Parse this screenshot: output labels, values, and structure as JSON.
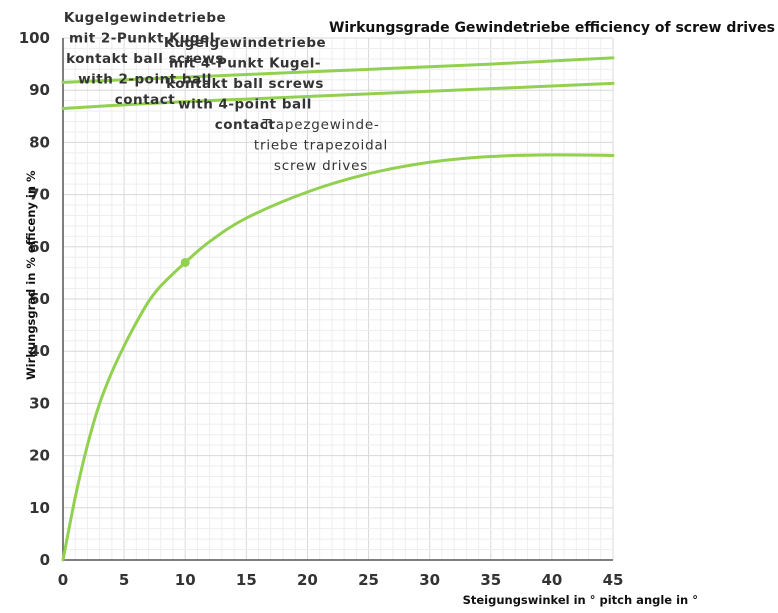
{
  "chart_data": {
    "type": "line",
    "title": "Wirkungsgrade Gewindetriebe efficiency of screw drives",
    "xlabel": "Steigungswinkel in ° pitch angle in °",
    "ylabel": "Wirkungsgrad in % efficeny in %",
    "xlim": [
      0,
      45
    ],
    "ylim": [
      0,
      100
    ],
    "x_ticks": [
      "0",
      "5",
      "10",
      "15",
      "20",
      "25",
      "30",
      "35",
      "40",
      "45"
    ],
    "y_ticks": [
      "0",
      "10",
      "20",
      "30",
      "40",
      "50",
      "60",
      "70",
      "80",
      "90",
      "100"
    ],
    "grid": true,
    "line_color": "#92d050",
    "series": [
      {
        "name": "Kugelgewindetriebe mit 2-Punkt Kugelkontakt ball screws with 2-point ball contact",
        "label_lines": [
          "Kugelgewindetriebe",
          "mit 2-Punkt Kugel-",
          "kontakt ball screws",
          "with 2-point ball",
          "contact"
        ],
        "x": [
          0,
          5,
          10,
          15,
          20,
          25,
          30,
          35,
          40,
          45
        ],
        "y": [
          91.5,
          92.0,
          92.5,
          93.0,
          93.5,
          94.0,
          94.5,
          95.0,
          95.6,
          96.2
        ]
      },
      {
        "name": "Kugelgewindetriebe mit 4-Punkt Kugelkontakt ball screws with 4-point ball contact",
        "label_lines": [
          "Kugelgewindetriebe",
          "mit 4-Punkt Kugel-",
          "kontakt ball screws",
          "with 4-point ball",
          "contact"
        ],
        "x": [
          0,
          5,
          10,
          15,
          20,
          25,
          30,
          35,
          40,
          45
        ],
        "y": [
          86.5,
          87.2,
          87.8,
          88.3,
          88.8,
          89.3,
          89.8,
          90.3,
          90.8,
          91.3
        ]
      },
      {
        "name": "Trapezgewindetriebe trapezoidal screw drives",
        "label_lines": [
          "Trapezgewinde-",
          "triebe trapezoidal",
          "screw drives"
        ],
        "x": [
          0,
          1,
          2,
          3,
          4,
          5,
          6,
          7,
          8,
          10,
          12,
          15,
          20,
          25,
          30,
          35,
          40,
          45
        ],
        "y": [
          0,
          12,
          22,
          30,
          36,
          41,
          45.5,
          49.5,
          52.5,
          57,
          61,
          65.5,
          70.5,
          74,
          76.2,
          77.3,
          77.6,
          77.5
        ]
      }
    ],
    "marker_point": {
      "x": 10,
      "y": 57
    }
  }
}
